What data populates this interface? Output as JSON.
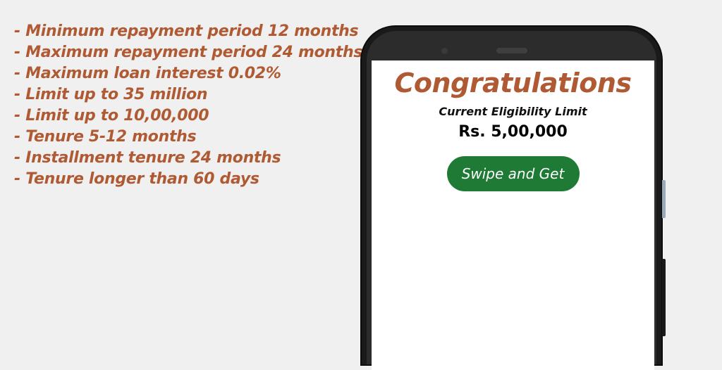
{
  "features": [
    "- Minimum repayment period 12 months",
    "- Maximum repayment period 24 months",
    "- Maximum loan interest 0.02%",
    "- Limit up to 35 million",
    "- Limit up to 10,00,000",
    "- Tenure 5-12 months",
    "- Installment tenure 24 months",
    "- Tenure longer than 60 days"
  ],
  "screen": {
    "title": "Congratulations",
    "eligibility_label": "Current Eligibility Limit",
    "eligibility_amount": "Rs. 5,00,000",
    "button_label": "Swipe and Get"
  },
  "colors": {
    "accent_text": "#b05a34",
    "button_green": "#1e7a34",
    "background": "#f0f0f0"
  }
}
